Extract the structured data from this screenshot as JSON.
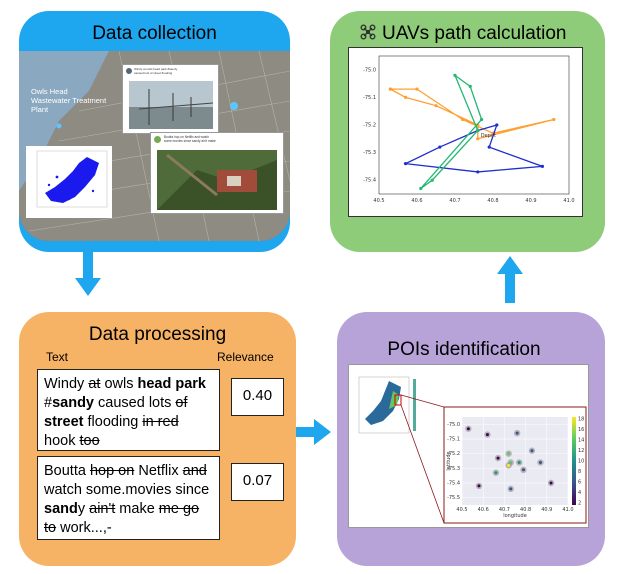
{
  "panels": {
    "collection": {
      "title": "Data collection",
      "color": "#1ea6ef"
    },
    "path": {
      "title": "UAVs path calculation",
      "color": "#8fcc7a"
    },
    "processing": {
      "title": "Data processing",
      "color": "#f6b265"
    },
    "pois": {
      "title": "POIs identification",
      "color": "#b7a3d8"
    }
  },
  "map": {
    "label_place": "Owls Head Wastewater Treatment Plant",
    "tweet1_lines": [
      "Windy at owls head park #sandy",
      "caused lots of street flooding"
    ],
    "tweet2_lines": [
      "Boutta hop on Netflix and watch",
      "some movies since sandy ain't make"
    ]
  },
  "processing": {
    "col_text": "Text",
    "col_relevance": "Relevance",
    "rows": [
      {
        "relevance": "0.40"
      },
      {
        "relevance": "0.07"
      }
    ]
  },
  "path_chart": {
    "label_depot": "Depot",
    "y_ticks": [
      "-75.0",
      "-75.1",
      "-75.2",
      "-75.3",
      "-75.4"
    ],
    "x_ticks": [
      "40.5",
      "40.6",
      "40.7",
      "40.8",
      "40.9",
      "41.0"
    ]
  },
  "poi_chart": {
    "y_ticks": [
      "-75.0",
      "-75.1",
      "-75.2",
      "-75.3",
      "-75.4",
      "-75.5"
    ],
    "x_ticks": [
      "40.5",
      "40.6",
      "40.7",
      "40.8",
      "40.9",
      "41.0"
    ],
    "cbar_ticks": [
      "18",
      "16",
      "14",
      "12",
      "10",
      "8",
      "6",
      "4",
      "2"
    ],
    "xlabel": "longitude",
    "ylabel": "latitude"
  },
  "chart_data": [
    {
      "type": "line",
      "title": "",
      "xlim": [
        40.5,
        41.0
      ],
      "ylim": [
        -75.45,
        -74.95
      ],
      "series": [
        {
          "color": "#ff9f2f",
          "x": [
            40.53,
            40.6,
            40.72,
            40.8,
            40.96,
            40.76,
            40.76,
            40.65,
            40.57,
            40.53
          ],
          "y": [
            -75.07,
            -75.07,
            -75.18,
            -75.23,
            -75.18,
            -75.25,
            -75.2,
            -75.13,
            -75.1,
            -75.07
          ]
        },
        {
          "color": "#1f2fcc",
          "x": [
            40.76,
            40.66,
            40.57,
            40.76,
            40.93,
            40.79,
            40.81,
            40.76
          ],
          "y": [
            -75.22,
            -75.28,
            -75.34,
            -75.37,
            -75.35,
            -75.28,
            -75.2,
            -75.22
          ]
        },
        {
          "color": "#23b870",
          "x": [
            40.76,
            40.7,
            40.74,
            40.77,
            40.61,
            40.64,
            40.76
          ],
          "y": [
            -75.22,
            -75.02,
            -75.06,
            -75.18,
            -75.43,
            -75.4,
            -75.22
          ]
        }
      ]
    },
    {
      "type": "scatter",
      "title": "",
      "xlim": [
        40.5,
        41.0
      ],
      "ylim": [
        -75.55,
        -74.95
      ],
      "x": [
        40.53,
        40.62,
        40.67,
        40.76,
        40.72,
        40.73,
        40.72,
        40.77,
        40.83,
        40.87,
        40.79,
        40.92,
        40.66,
        40.58,
        40.73
      ],
      "y": [
        -75.03,
        -75.07,
        -75.23,
        -75.06,
        -75.2,
        -75.26,
        -75.28,
        -75.26,
        -75.18,
        -75.26,
        -75.31,
        -75.4,
        -75.33,
        -75.42,
        -75.44
      ],
      "c": [
        1,
        3,
        2,
        4,
        15,
        12,
        18,
        9,
        6,
        5,
        7,
        3,
        8,
        2,
        4
      ]
    }
  ]
}
